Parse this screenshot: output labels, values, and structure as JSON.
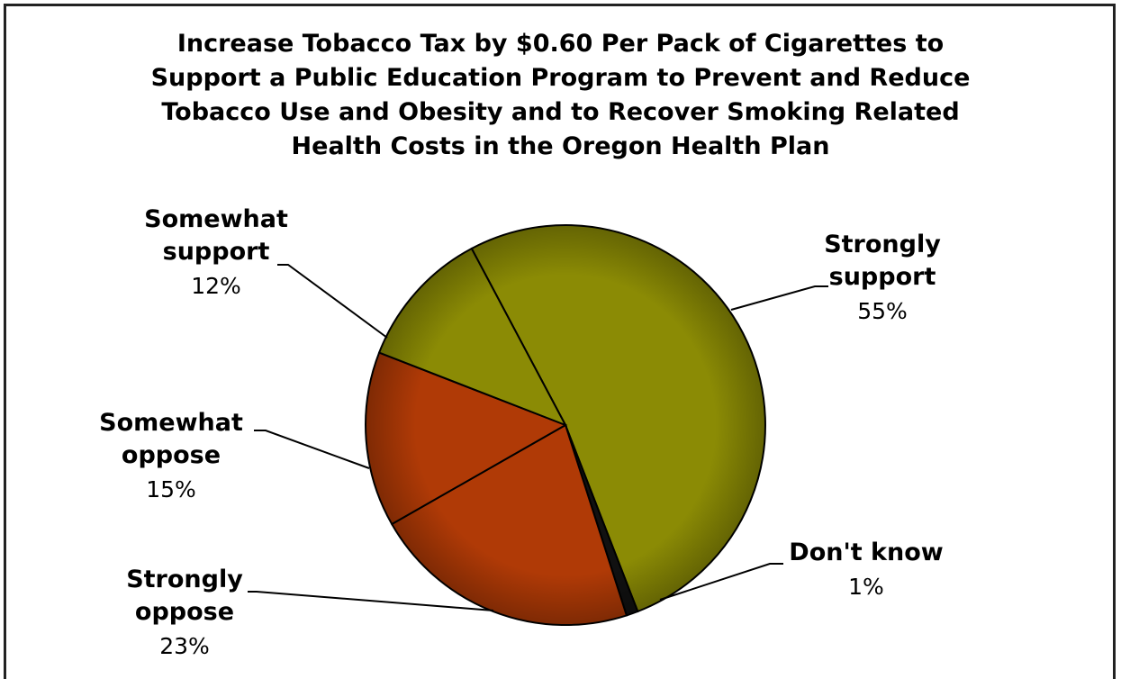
{
  "chart_data": {
    "type": "pie",
    "title_lines": [
      "Increase Tobacco Tax by $0.60 Per Pack of Cigarettes to",
      "Support a Public Education Program to Prevent and Reduce",
      "Tobacco Use and Obesity and to Recover Smoking Related",
      "Health Costs in the Oregon Health Plan"
    ],
    "slices": [
      {
        "name_lines": [
          "Strongly",
          "support"
        ],
        "value": 55,
        "label": "55%",
        "color": "#8b8b05"
      },
      {
        "name_lines": [
          "Don't know"
        ],
        "value": 1,
        "label": "1%",
        "color": "#111111"
      },
      {
        "name_lines": [
          "Strongly",
          "oppose"
        ],
        "value": 23,
        "label": "23%",
        "color": "#b03a06"
      },
      {
        "name_lines": [
          "Somewhat",
          "oppose"
        ],
        "value": 15,
        "label": "15%",
        "color": "#b03a06"
      },
      {
        "name_lines": [
          "Somewhat",
          "support"
        ],
        "value": 12,
        "label": "12%",
        "color": "#8b8b05"
      }
    ],
    "legend": "none",
    "data_labels": "outside with leader lines"
  }
}
